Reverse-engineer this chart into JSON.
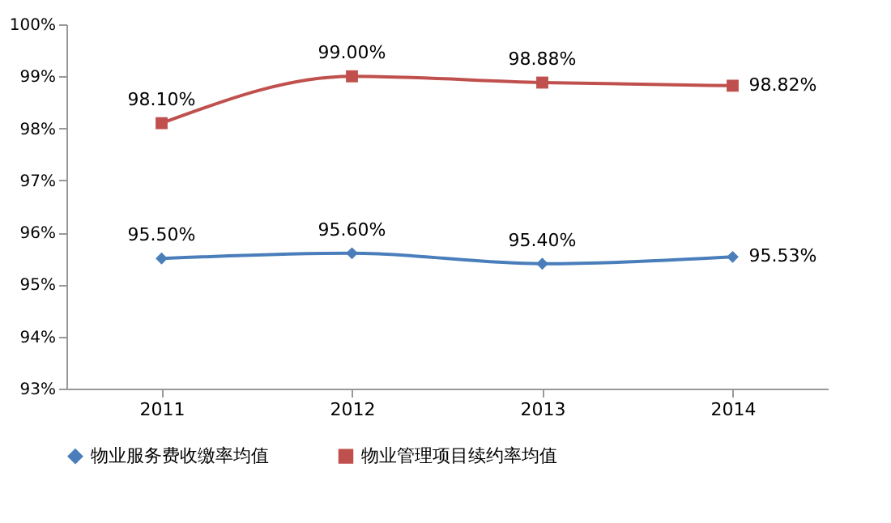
{
  "chart_data": {
    "type": "line",
    "categories": [
      "2011",
      "2012",
      "2013",
      "2014"
    ],
    "series": [
      {
        "name": "物业服务费收缴率均值",
        "color": "#4a7ebb",
        "marker": "diamond",
        "values": [
          95.5,
          95.6,
          95.4,
          95.53
        ],
        "value_labels": [
          "95.50%",
          "95.60%",
          "95.40%",
          "95.53%"
        ]
      },
      {
        "name": "物业管理项目续约率均值",
        "color": "#c0504d",
        "marker": "square",
        "values": [
          98.1,
          99.0,
          98.88,
          98.82
        ],
        "value_labels": [
          "98.10%",
          "99.00%",
          "98.88%",
          "98.82%"
        ]
      }
    ],
    "ylim": [
      93,
      100
    ],
    "yticks": [
      {
        "value": 93,
        "label": "93%"
      },
      {
        "value": 94,
        "label": "94%"
      },
      {
        "value": 95,
        "label": "95%"
      },
      {
        "value": 96,
        "label": "96%"
      },
      {
        "value": 97,
        "label": "97%"
      },
      {
        "value": 98,
        "label": "98%"
      },
      {
        "value": 99,
        "label": "99%"
      },
      {
        "value": 100,
        "label": "100%"
      }
    ],
    "grid": false,
    "legend": "bottom",
    "line_style": "solid"
  }
}
